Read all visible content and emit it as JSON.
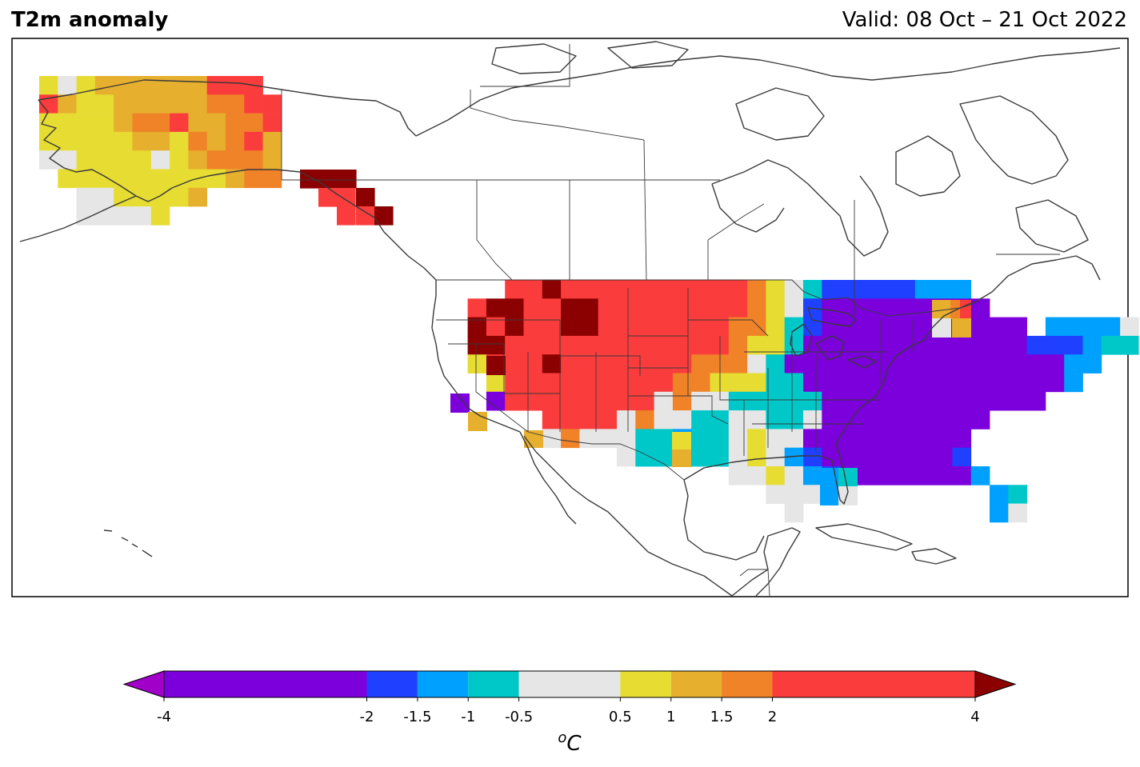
{
  "header": {
    "title": "T2m anomaly",
    "valid": "Valid: 08 Oct – 21 Oct 2022"
  },
  "colorbar": {
    "unit_base": "C",
    "unit_sup": "o",
    "extend": "both",
    "boundaries": [
      -4,
      -2,
      -1.5,
      -1,
      -0.5,
      0.5,
      1,
      1.5,
      2,
      4
    ],
    "tick_labels": [
      "-4",
      "-2",
      "-1.5",
      "-1",
      "-0.5",
      "0.5",
      "1",
      "1.5",
      "2",
      "4"
    ],
    "colors": [
      "#7b00dc",
      "#2040ff",
      "#00a0ff",
      "#00c8c8",
      "#e6e6e6",
      "#e6dc32",
      "#e6af2d",
      "#f08228",
      "#fa3c3c"
    ],
    "under_color": "#a000c8",
    "over_color": "#8b0000"
  },
  "map": {
    "region": "North America",
    "variable": "2 m temperature anomaly",
    "pattern": [
      "Alaska: yellow to orange/red, warmer in the east",
      "Alaska panhandle: dark red",
      "Western CONUS and northern Rockies: red with dark red cores in the Pacific Northwest and Idaho/Montana",
      "Southern Plains/Texas: near normal to slightly cool (gray, cyan)",
      "Central and eastern CONUS: purple (below -2)",
      "Florida: blue/cyan",
      "Northern New England: orange"
    ]
  }
}
